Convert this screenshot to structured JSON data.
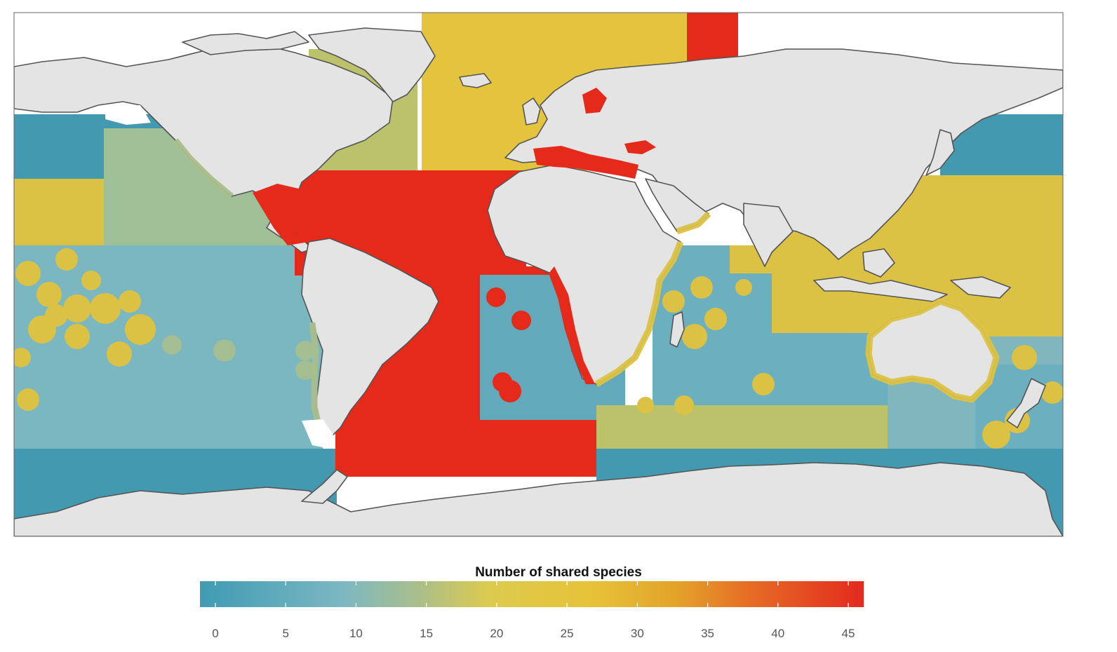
{
  "legend": {
    "title": "Number of shared species",
    "min": 0,
    "max": 46,
    "ticks": [
      "0",
      "5",
      "10",
      "15",
      "20",
      "25",
      "30",
      "35",
      "40",
      "45"
    ],
    "tick_values": [
      0,
      5,
      10,
      15,
      20,
      25,
      30,
      35,
      40,
      45
    ],
    "color_stops": [
      {
        "v": 0,
        "c": "#3f9bb3"
      },
      {
        "v": 10,
        "c": "#7db8c2"
      },
      {
        "v": 15,
        "c": "#a9be8c"
      },
      {
        "v": 20,
        "c": "#dccb4e"
      },
      {
        "v": 27,
        "c": "#e6c338"
      },
      {
        "v": 33,
        "c": "#e3a32a"
      },
      {
        "v": 38,
        "c": "#e66d26"
      },
      {
        "v": 46,
        "c": "#e32a1e"
      }
    ]
  },
  "colors": {
    "land": "#e4e4e4",
    "coast": "#555555",
    "low": "#4299b0",
    "midlow": "#7ab7c1",
    "mid": "#9fbf97",
    "olive": "#bcc16b",
    "yellow": "#e3c43c",
    "high": "#e52a1b"
  },
  "regions": [
    {
      "name": "north-pacific-west",
      "value": 6
    },
    {
      "name": "north-pacific-east",
      "value": 6
    },
    {
      "name": "eastern-central-pacific",
      "value": 15
    },
    {
      "name": "central-pacific",
      "value": 11
    },
    {
      "name": "southern-ocean-pacific",
      "value": 4
    },
    {
      "name": "northwest-atlantic",
      "value": 19
    },
    {
      "name": "northeast-atlantic",
      "value": 25
    },
    {
      "name": "barents-sea",
      "value": 45
    },
    {
      "name": "central-atlantic",
      "value": 45
    },
    {
      "name": "southeast-atlantic",
      "value": 9
    },
    {
      "name": "south-atlantic",
      "value": 45
    },
    {
      "name": "western-indian-ocean",
      "value": 9
    },
    {
      "name": "eastern-indian-ocean",
      "value": 24
    },
    {
      "name": "southern-indian-ocean",
      "value": 19
    },
    {
      "name": "western-pacific",
      "value": 24
    },
    {
      "name": "southwest-pacific",
      "value": 11
    },
    {
      "name": "mediterranean",
      "value": 45
    },
    {
      "name": "gulf-of-mexico",
      "value": 45
    }
  ]
}
